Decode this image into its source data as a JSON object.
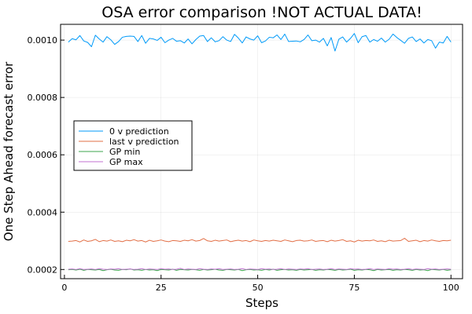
{
  "chart_data": {
    "type": "line",
    "title": "OSA error comparison !NOT ACTUAL DATA!",
    "xlabel": "Steps",
    "ylabel": "One Step Ahead forecast error",
    "xlim": [
      -1,
      103
    ],
    "ylim": [
      0.000168,
      0.001055
    ],
    "xticks": [
      0,
      25,
      50,
      75,
      100
    ],
    "xtick_labels": [
      "0",
      "25",
      "50",
      "75",
      "100"
    ],
    "yticks": [
      0.0002,
      0.0004,
      0.0006,
      0.0008,
      0.001
    ],
    "ytick_labels": [
      "0.0002",
      "0.0004",
      "0.0006",
      "0.0008",
      "0.0010"
    ],
    "grid": true,
    "legend_position": "middle-left",
    "x": [
      1,
      2,
      3,
      4,
      5,
      6,
      7,
      8,
      9,
      10,
      11,
      12,
      13,
      14,
      15,
      16,
      17,
      18,
      19,
      20,
      21,
      22,
      23,
      24,
      25,
      26,
      27,
      28,
      29,
      30,
      31,
      32,
      33,
      34,
      35,
      36,
      37,
      38,
      39,
      40,
      41,
      42,
      43,
      44,
      45,
      46,
      47,
      48,
      49,
      50,
      51,
      52,
      53,
      54,
      55,
      56,
      57,
      58,
      59,
      60,
      61,
      62,
      63,
      64,
      65,
      66,
      67,
      68,
      69,
      70,
      71,
      72,
      73,
      74,
      75,
      76,
      77,
      78,
      79,
      80,
      81,
      82,
      83,
      84,
      85,
      86,
      87,
      88,
      89,
      90,
      91,
      92,
      93,
      94,
      95,
      96,
      97,
      98,
      99,
      100
    ],
    "series": [
      {
        "name": "0 v prediction",
        "color": "#009af9",
        "values": [
          0.000993,
          0.001005,
          0.001001,
          0.001016,
          0.000997,
          0.000992,
          0.000977,
          0.001017,
          0.001004,
          0.000993,
          0.001012,
          0.001001,
          0.000985,
          0.000995,
          0.00101,
          0.001013,
          0.001014,
          0.001013,
          0.000995,
          0.001016,
          0.000989,
          0.001006,
          0.001004,
          0.000999,
          0.00101,
          0.000991,
          0.001,
          0.001006,
          0.000996,
          0.000998,
          0.00099,
          0.001004,
          0.000987,
          0.001002,
          0.001014,
          0.001016,
          0.000995,
          0.001008,
          0.000994,
          0.000998,
          0.001012,
          0.001,
          0.000995,
          0.00102,
          0.001007,
          0.00099,
          0.001011,
          0.001004,
          0.001,
          0.001015,
          0.000991,
          0.000997,
          0.00101,
          0.001008,
          0.001018,
          0.001002,
          0.001021,
          0.000995,
          0.000996,
          0.000997,
          0.000994,
          0.001002,
          0.001018,
          0.000998,
          0.001,
          0.000993,
          0.001006,
          0.00098,
          0.001009,
          0.000962,
          0.001003,
          0.001011,
          0.000993,
          0.001006,
          0.001023,
          0.000991,
          0.001012,
          0.001016,
          0.000993,
          0.001002,
          0.000996,
          0.001007,
          0.000993,
          0.001003,
          0.001021,
          0.001009,
          0.000999,
          0.000989,
          0.001006,
          0.001011,
          0.000995,
          0.001004,
          0.00099,
          0.001002,
          0.000998,
          0.000972,
          0.000993,
          0.00099,
          0.001013,
          0.000993
        ]
      },
      {
        "name": "last v prediction",
        "color": "#e26f46",
        "values": [
          0.000298,
          0.000299,
          0.000301,
          0.000296,
          0.000303,
          0.000298,
          0.0003,
          0.000305,
          0.000297,
          0.000301,
          0.000299,
          0.000303,
          0.000298,
          0.0003,
          0.000297,
          0.000302,
          0.0003,
          0.000304,
          0.000299,
          0.000301,
          0.000296,
          0.000302,
          0.000298,
          0.0003,
          0.000303,
          0.000299,
          0.000297,
          0.000301,
          0.0003,
          0.000298,
          0.000302,
          0.0003,
          0.000304,
          0.000299,
          0.000301,
          0.000308,
          0.0003,
          0.000298,
          0.000302,
          0.000299,
          0.000301,
          0.000303,
          0.000297,
          0.0003,
          0.000302,
          0.000299,
          0.000301,
          0.000297,
          0.000303,
          0.0003,
          0.000298,
          0.000301,
          0.000299,
          0.000302,
          0.0003,
          0.000298,
          0.000303,
          0.0003,
          0.000297,
          0.000301,
          0.000302,
          0.000299,
          0.0003,
          0.000303,
          0.000298,
          0.0003,
          0.000301,
          0.000297,
          0.000302,
          0.000299,
          0.000301,
          0.000304,
          0.000298,
          0.0003,
          0.000296,
          0.000302,
          0.000299,
          0.000301,
          0.0003,
          0.000303,
          0.000298,
          0.0003,
          0.000297,
          0.000302,
          0.000299,
          0.0003,
          0.000301,
          0.000309,
          0.000298,
          0.0003,
          0.000302,
          0.000297,
          0.000301,
          0.000299,
          0.000303,
          0.0003,
          0.000298,
          0.000301,
          0.0003,
          0.000302
        ]
      },
      {
        "name": "GP min",
        "color": "#3da44d",
        "values": [
          0.000199,
          0.0002,
          0.000198,
          0.000201,
          0.000197,
          0.0002,
          0.000199,
          0.000198,
          0.0002,
          0.000196,
          0.000199,
          0.000201,
          0.000198,
          0.000197,
          0.0002,
          0.000199,
          0.000202,
          0.000198,
          0.000199,
          0.000197,
          0.0002,
          0.000198,
          0.000199,
          0.000196,
          0.0002,
          0.000199,
          0.000198,
          0.000201,
          0.000197,
          0.0002,
          0.000199,
          0.000198,
          0.0002,
          0.000199,
          0.000197,
          0.0002,
          0.000198,
          0.000199,
          0.000201,
          0.000198,
          0.000197,
          0.0002,
          0.000199,
          0.000198,
          0.0002,
          0.000196,
          0.000199,
          0.0002,
          0.000198,
          0.000199,
          0.000197,
          0.0002,
          0.000198,
          0.000201,
          0.000197,
          0.000199,
          0.0002,
          0.000198,
          0.000199,
          0.000197,
          0.0002,
          0.000198,
          0.000199,
          0.0002,
          0.000197,
          0.000199,
          0.000198,
          0.0002,
          0.000199,
          0.000197,
          0.0002,
          0.000198,
          0.000199,
          0.000201,
          0.000197,
          0.000199,
          0.000198,
          0.0002,
          0.000199,
          0.000196,
          0.0002,
          0.000198,
          0.000199,
          0.0002,
          0.000197,
          0.000199,
          0.000198,
          0.0002,
          0.000199,
          0.000197,
          0.0002,
          0.000198,
          0.000199,
          0.000196,
          0.0002,
          0.000199,
          0.000198,
          0.0002,
          0.000197,
          0.000199
        ]
      },
      {
        "name": "GP max",
        "color": "#c271d2",
        "values": [
          0.000201,
          0.000202,
          0.0002,
          0.000203,
          0.0002,
          0.000201,
          0.000202,
          0.0002,
          0.000203,
          0.000201,
          0.0002,
          0.000202,
          0.000201,
          0.000203,
          0.0002,
          0.000201,
          0.000202,
          0.0002,
          0.000201,
          0.000203,
          0.0002,
          0.000202,
          0.000201,
          0.0002,
          0.000203,
          0.000201,
          0.000202,
          0.0002,
          0.000201,
          0.000204,
          0.0002,
          0.000202,
          0.000201,
          0.0002,
          0.000203,
          0.000201,
          0.0002,
          0.000202,
          0.000201,
          0.000203,
          0.0002,
          0.000201,
          0.000202,
          0.0002,
          0.000201,
          0.000203,
          0.0002,
          0.000202,
          0.000201,
          0.0002,
          0.000203,
          0.000201,
          0.000202,
          0.0002,
          0.000201,
          0.000203,
          0.0002,
          0.000202,
          0.000201,
          0.0002,
          0.000202,
          0.000201,
          0.000203,
          0.0002,
          0.000201,
          0.000202,
          0.0002,
          0.000201,
          0.000203,
          0.0002,
          0.000202,
          0.000201,
          0.0002,
          0.000203,
          0.000201,
          0.000202,
          0.0002,
          0.000201,
          0.000203,
          0.0002,
          0.000202,
          0.000201,
          0.0002,
          0.000203,
          0.000201,
          0.000202,
          0.0002,
          0.000201,
          0.000203,
          0.0002,
          0.000202,
          0.000201,
          0.0002,
          0.000203,
          0.000201,
          0.000202,
          0.0002,
          0.000201,
          0.000202,
          0.000201
        ]
      }
    ]
  }
}
